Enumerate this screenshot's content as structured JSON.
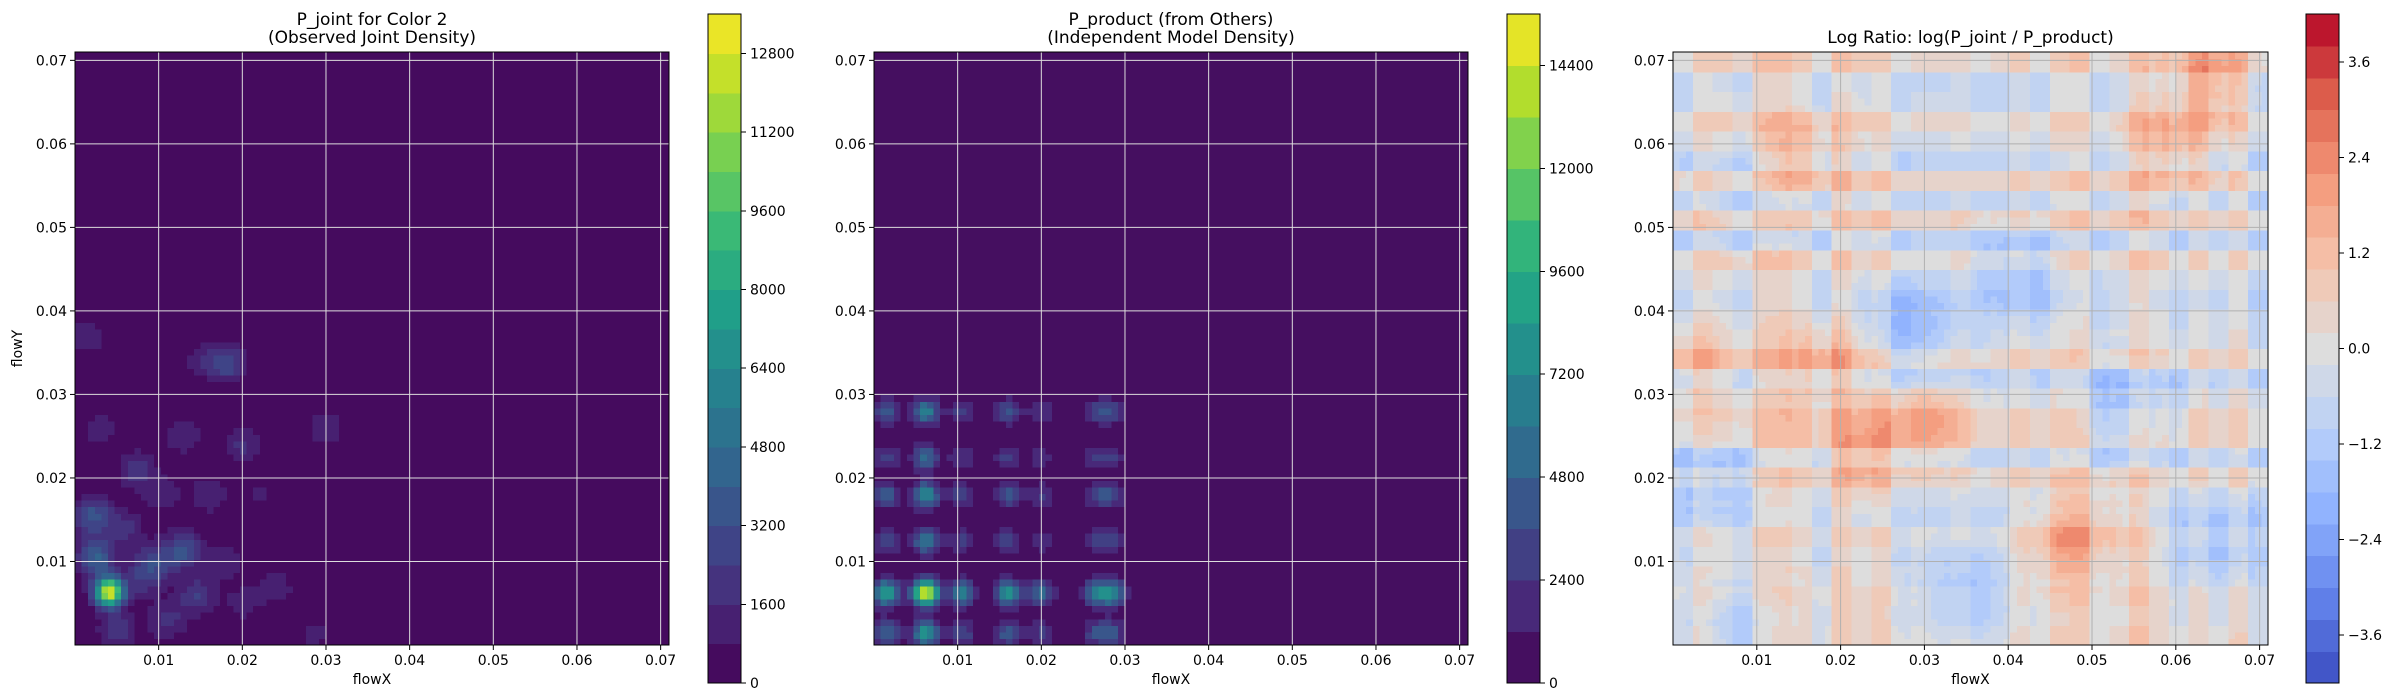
{
  "chart_data": [
    {
      "type": "heatmap",
      "title": "P_joint for Color 2",
      "subtitle": "(Observed Joint Density)",
      "xlabel": "flowX",
      "ylabel": "flowY",
      "xlim": [
        0.0,
        0.071
      ],
      "ylim": [
        0.0,
        0.071
      ],
      "xticks": [
        "0.01",
        "0.02",
        "0.03",
        "0.04",
        "0.05",
        "0.06",
        "0.07"
      ],
      "yticks": [
        "0.01",
        "0.02",
        "0.03",
        "0.04",
        "0.05",
        "0.06",
        "0.07"
      ],
      "grid": true,
      "colormap": "viridis",
      "colorbar": {
        "min": 0,
        "max": 13600,
        "levels": 17,
        "ticks": [
          "0",
          "1600",
          "3200",
          "4800",
          "6400",
          "8000",
          "9600",
          "11200",
          "12800"
        ]
      },
      "peaks": [
        {
          "x": 0.0041,
          "y": 0.0064,
          "value": 13200
        },
        {
          "x": 0.0025,
          "y": 0.0105,
          "value": 4000
        },
        {
          "x": 0.0022,
          "y": 0.0155,
          "value": 3500
        },
        {
          "x": 0.013,
          "y": 0.0115,
          "value": 3400
        },
        {
          "x": 0.0182,
          "y": 0.0338,
          "value": 3000
        },
        {
          "x": 0.0095,
          "y": 0.01,
          "value": 2600
        },
        {
          "x": 0.0075,
          "y": 0.021,
          "value": 2200
        },
        {
          "x": 0.0145,
          "y": 0.006,
          "value": 2400
        },
        {
          "x": 0.005,
          "y": 0.0018,
          "value": 2200
        },
        {
          "x": 0.011,
          "y": 0.003,
          "value": 2000
        },
        {
          "x": 0.008,
          "y": 0.008,
          "value": 1900
        },
        {
          "x": 0.02,
          "y": 0.024,
          "value": 1800
        },
        {
          "x": 0.03,
          "y": 0.026,
          "value": 1600
        },
        {
          "x": 0.0015,
          "y": 0.037,
          "value": 1400
        },
        {
          "x": 0.013,
          "y": 0.025,
          "value": 1500
        },
        {
          "x": 0.016,
          "y": 0.018,
          "value": 1600
        },
        {
          "x": 0.024,
          "y": 0.007,
          "value": 1400
        },
        {
          "x": 0.018,
          "y": 0.01,
          "value": 1500
        },
        {
          "x": 0.003,
          "y": 0.026,
          "value": 1300
        },
        {
          "x": 0.0105,
          "y": 0.018,
          "value": 1400
        },
        {
          "x": 0.02,
          "y": 0.005,
          "value": 1200
        },
        {
          "x": 0.0285,
          "y": 0.0015,
          "value": 1100
        },
        {
          "x": 0.015,
          "y": 0.034,
          "value": 1100
        },
        {
          "x": 0.022,
          "y": 0.018,
          "value": 1000
        },
        {
          "x": 0.006,
          "y": 0.014,
          "value": 1800
        }
      ]
    },
    {
      "type": "heatmap",
      "title": "P_product (from Others)",
      "subtitle": "(Independent Model Density)",
      "xlabel": "flowX",
      "ylabel": "",
      "xlim": [
        0.0,
        0.071
      ],
      "ylim": [
        0.0,
        0.071
      ],
      "xticks": [
        "0.01",
        "0.02",
        "0.03",
        "0.04",
        "0.05",
        "0.06",
        "0.07"
      ],
      "yticks": [
        "0.01",
        "0.02",
        "0.03",
        "0.04",
        "0.05",
        "0.06",
        "0.07"
      ],
      "grid": true,
      "colormap": "viridis",
      "colorbar": {
        "min": 0,
        "max": 15600,
        "levels": 13,
        "ticks": [
          "0",
          "2400",
          "4800",
          "7200",
          "9600",
          "12000",
          "14400"
        ]
      },
      "marginal_x": [
        {
          "x": 0.0015,
          "w": 0.6
        },
        {
          "x": 0.0062,
          "w": 1.0
        },
        {
          "x": 0.0105,
          "w": 0.45
        },
        {
          "x": 0.016,
          "w": 0.55
        },
        {
          "x": 0.02,
          "w": 0.35
        },
        {
          "x": 0.0265,
          "w": 0.4
        },
        {
          "x": 0.0285,
          "w": 0.45
        },
        {
          "x": 0.0325,
          "w": 0.08
        },
        {
          "x": 0.0385,
          "w": 0.08
        },
        {
          "x": 0.053,
          "w": 0.08
        }
      ],
      "marginal_y": [
        {
          "y": 0.0015,
          "w": 0.55
        },
        {
          "y": 0.0063,
          "w": 1.0
        },
        {
          "y": 0.0125,
          "w": 0.4
        },
        {
          "y": 0.018,
          "w": 0.5
        },
        {
          "y": 0.0225,
          "w": 0.35
        },
        {
          "y": 0.028,
          "w": 0.45
        },
        {
          "y": 0.034,
          "w": 0.08
        },
        {
          "y": 0.053,
          "w": 0.08
        }
      ]
    },
    {
      "type": "heatmap",
      "title": "Log Ratio: log(P_joint / P_product)",
      "xlabel": "flowX",
      "ylabel": "",
      "xlim": [
        0.0,
        0.071
      ],
      "ylim": [
        0.0,
        0.071
      ],
      "xticks": [
        "0.01",
        "0.02",
        "0.03",
        "0.04",
        "0.05",
        "0.06",
        "0.07"
      ],
      "yticks": [
        "0.01",
        "0.02",
        "0.03",
        "0.04",
        "0.05",
        "0.06",
        "0.07"
      ],
      "grid": true,
      "colormap": "coolwarm",
      "colorbar": {
        "min": -4.2,
        "max": 4.2,
        "levels": 21,
        "ticks": [
          "3.6",
          "2.4",
          "1.2",
          "0.0",
          "−1.2",
          "−2.4",
          "−3.6"
        ]
      },
      "hotspots": [
        {
          "x": 0.03,
          "y": 0.027,
          "value": 2.8
        },
        {
          "x": 0.018,
          "y": 0.034,
          "value": 2.2
        },
        {
          "x": 0.015,
          "y": 0.058,
          "value": 2.4
        },
        {
          "x": 0.064,
          "y": 0.068,
          "value": 3.2
        },
        {
          "x": 0.046,
          "y": 0.012,
          "value": 2.0
        },
        {
          "x": 0.05,
          "y": 0.014,
          "value": 1.8
        },
        {
          "x": 0.022,
          "y": 0.023,
          "value": 1.8
        },
        {
          "x": 0.06,
          "y": 0.06,
          "value": 2.4
        },
        {
          "x": 0.002,
          "y": 0.034,
          "value": 1.6
        }
      ],
      "coldspots": [
        {
          "x": 0.005,
          "y": 0.02,
          "value": -2.2
        },
        {
          "x": 0.028,
          "y": 0.038,
          "value": -2.4
        },
        {
          "x": 0.054,
          "y": 0.028,
          "value": -2.6
        },
        {
          "x": 0.042,
          "y": 0.044,
          "value": -1.8
        },
        {
          "x": 0.011,
          "y": 0.054,
          "value": -1.6
        },
        {
          "x": 0.035,
          "y": 0.006,
          "value": -2.0
        },
        {
          "x": 0.065,
          "y": 0.012,
          "value": -1.8
        },
        {
          "x": 0.008,
          "y": 0.002,
          "value": -2.2
        }
      ]
    }
  ]
}
